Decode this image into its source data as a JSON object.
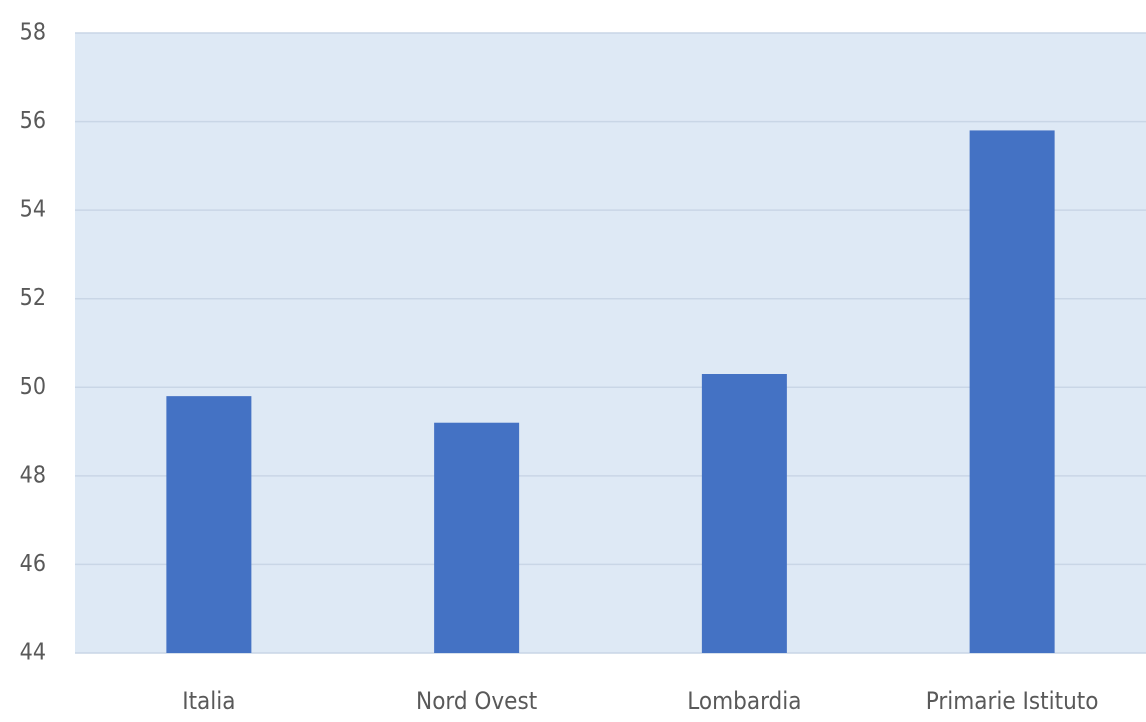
{
  "chart_data": {
    "type": "bar",
    "categories": [
      "Italia",
      "Nord Ovest",
      "Lombardia",
      "Primarie Istituto"
    ],
    "values": [
      49.8,
      49.2,
      50.3,
      55.8
    ],
    "title": "",
    "xlabel": "",
    "ylabel": "",
    "ylim": [
      44,
      58
    ],
    "yticks": [
      "44",
      "46",
      "48",
      "50",
      "52",
      "54",
      "56",
      "58"
    ],
    "grid": true,
    "legend": "none",
    "colors": {
      "bar": "#4472c4",
      "plot_background": "#dee9f5",
      "gridline": "#c9d6e6",
      "axis_text": "#595959"
    }
  }
}
